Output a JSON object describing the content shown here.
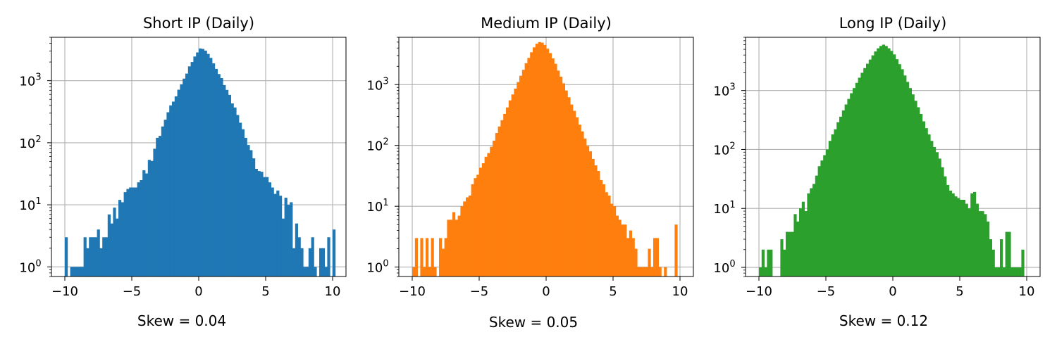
{
  "chart_data": [
    {
      "type": "bar",
      "title": "Short IP (Daily)",
      "xlabel": "Skew = 0.04",
      "ylabel": "",
      "xlim": [
        -11,
        11
      ],
      "ylim": [
        0.7,
        5000
      ],
      "yscale": "log",
      "grid": true,
      "color": "#1f77b4",
      "x_ticks": [
        -10,
        -5,
        0,
        5,
        10
      ],
      "x_tick_labels": [
        "−10",
        "−5",
        "0",
        "5",
        "10"
      ],
      "y_ticks": [
        1,
        10,
        100,
        1000
      ],
      "y_tick_labels": [
        {
          "base": "10",
          "exp": "0"
        },
        {
          "base": "10",
          "exp": "1"
        },
        {
          "base": "10",
          "exp": "2"
        },
        {
          "base": "10",
          "exp": "3"
        }
      ],
      "bins": {
        "start": -10,
        "width": 0.2
      },
      "counts": [
        3,
        0,
        1,
        1,
        1,
        1,
        1,
        3,
        2,
        3,
        3,
        3,
        4,
        2,
        3,
        3,
        7,
        5,
        9,
        6,
        12,
        11,
        16,
        18,
        19,
        19,
        19,
        23,
        25,
        36,
        32,
        53,
        51,
        80,
        120,
        129,
        183,
        235,
        310,
        400,
        460,
        559,
        715,
        875,
        1080,
        1300,
        1700,
        2000,
        2450,
        2850,
        3300,
        3250,
        3050,
        2700,
        2330,
        1900,
        1550,
        1280,
        1100,
        850,
        710,
        590,
        430,
        370,
        280,
        210,
        165,
        120,
        92,
        76,
        56,
        38,
        35,
        34,
        28,
        28,
        23,
        19,
        15,
        17,
        14,
        6,
        13,
        10,
        11,
        2,
        5,
        3,
        2,
        1,
        1,
        2,
        3,
        1,
        0,
        2,
        2,
        1,
        3,
        0,
        4
      ]
    },
    {
      "type": "bar",
      "title": "Medium IP (Daily)",
      "xlabel": "Skew = 0.05",
      "ylabel": "",
      "xlim": [
        -11,
        11
      ],
      "ylim": [
        0.7,
        6000
      ],
      "yscale": "log",
      "grid": true,
      "color": "#ff7f0e",
      "x_ticks": [
        -10,
        -5,
        0,
        5,
        10
      ],
      "x_tick_labels": [
        "−10",
        "−5",
        "0",
        "5",
        "10"
      ],
      "y_ticks": [
        1,
        10,
        100,
        1000
      ],
      "y_tick_labels": [
        {
          "base": "10",
          "exp": "0"
        },
        {
          "base": "10",
          "exp": "1"
        },
        {
          "base": "10",
          "exp": "2"
        },
        {
          "base": "10",
          "exp": "3"
        }
      ],
      "bins": {
        "start": -10,
        "width": 0.2
      },
      "counts": [
        1,
        3,
        0,
        3,
        1,
        3,
        1,
        3,
        1,
        0,
        3,
        2,
        3,
        6,
        6,
        8,
        6,
        7,
        10,
        12,
        14,
        15,
        23,
        29,
        33,
        43,
        51,
        65,
        75,
        95,
        120,
        160,
        205,
        260,
        330,
        420,
        550,
        690,
        860,
        1100,
        1400,
        1750,
        2250,
        2750,
        3400,
        4100,
        4700,
        5000,
        4900,
        4500,
        3900,
        3300,
        2700,
        2200,
        1700,
        1350,
        1050,
        800,
        620,
        470,
        370,
        290,
        220,
        170,
        130,
        98,
        80,
        60,
        47,
        38,
        27,
        23,
        17,
        15,
        11,
        10,
        7,
        6,
        5,
        5,
        3,
        4,
        3,
        2,
        1,
        1,
        1,
        1,
        2,
        1,
        3,
        3,
        1,
        0,
        1,
        0,
        0,
        0,
        5
      ]
    },
    {
      "type": "bar",
      "title": "Long IP (Daily)",
      "xlabel": "Skew = 0.12",
      "ylabel": "",
      "xlim": [
        -11,
        11
      ],
      "ylim": [
        0.7,
        8000
      ],
      "yscale": "log",
      "grid": true,
      "color": "#2ca02c",
      "x_ticks": [
        -10,
        -5,
        0,
        5,
        10
      ],
      "x_tick_labels": [
        "−10",
        "−5",
        "0",
        "5",
        "10"
      ],
      "y_ticks": [
        1,
        10,
        100,
        1000
      ],
      "y_tick_labels": [
        {
          "base": "10",
          "exp": "0"
        },
        {
          "base": "10",
          "exp": "1"
        },
        {
          "base": "10",
          "exp": "2"
        },
        {
          "base": "10",
          "exp": "3"
        }
      ],
      "bins": {
        "start": -10,
        "width": 0.2
      },
      "counts": [
        1,
        2,
        1,
        2,
        2,
        0,
        0,
        0,
        3,
        2,
        4,
        4,
        4,
        8,
        6,
        10,
        13,
        9,
        18,
        22,
        26,
        36,
        52,
        65,
        80,
        100,
        140,
        180,
        220,
        290,
        360,
        460,
        580,
        720,
        900,
        1100,
        1350,
        1650,
        2000,
        2400,
        2850,
        3350,
        3950,
        4600,
        5200,
        5700,
        6000,
        5700,
        5200,
        4700,
        4100,
        3400,
        2800,
        2300,
        1800,
        1400,
        1100,
        860,
        670,
        520,
        400,
        300,
        230,
        180,
        140,
        110,
        90,
        70,
        50,
        35,
        25,
        20,
        18,
        16,
        15,
        14,
        14,
        12,
        10,
        18,
        19,
        12,
        9,
        9,
        8,
        6,
        3,
        2,
        1,
        1,
        3,
        1,
        4,
        4,
        1,
        1,
        1,
        1,
        2
      ]
    }
  ]
}
